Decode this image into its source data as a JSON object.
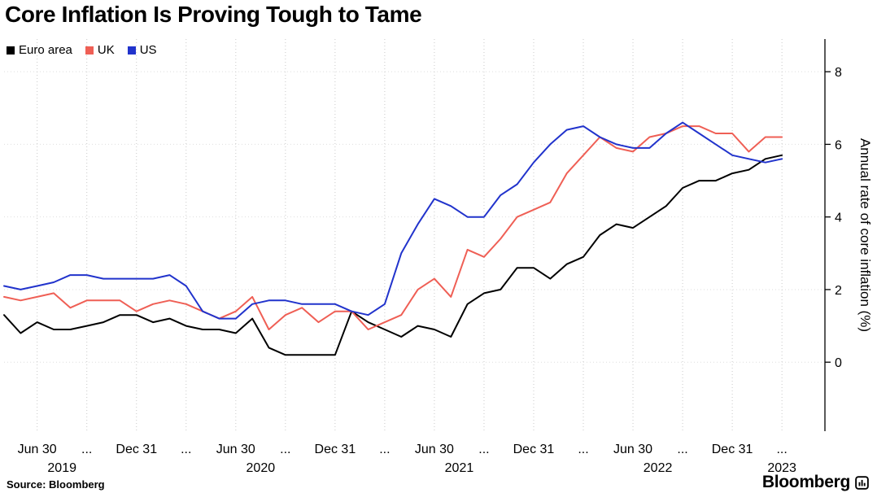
{
  "title": "Core Inflation Is Proving Tough to Tame",
  "source": "Source: Bloomberg",
  "brand": "Bloomberg",
  "chart_data": {
    "type": "line",
    "title": "Core Inflation Is Proving Tough to Tame",
    "xlabel": "",
    "ylabel": "Annual rate of core inflation (%)",
    "yticks": [
      0,
      2,
      4,
      6,
      8
    ],
    "ylim": [
      -1.9,
      8.9
    ],
    "x_domain": 49.5,
    "grid": "dotted",
    "legend_position": "top-left",
    "axis_side": "right",
    "x": [
      "2019-04",
      "2019-05",
      "2019-06",
      "2019-07",
      "2019-08",
      "2019-09",
      "2019-10",
      "2019-11",
      "2019-12",
      "2020-01",
      "2020-02",
      "2020-03",
      "2020-04",
      "2020-05",
      "2020-06",
      "2020-07",
      "2020-08",
      "2020-09",
      "2020-10",
      "2020-11",
      "2020-12",
      "2021-01",
      "2021-02",
      "2021-03",
      "2021-04",
      "2021-05",
      "2021-06",
      "2021-07",
      "2021-08",
      "2021-09",
      "2021-10",
      "2021-11",
      "2021-12",
      "2022-01",
      "2022-02",
      "2022-03",
      "2022-04",
      "2022-05",
      "2022-06",
      "2022-07",
      "2022-08",
      "2022-09",
      "2022-10",
      "2022-11",
      "2022-12",
      "2023-01",
      "2023-02",
      "2023-03"
    ],
    "xticks": [
      {
        "pos": 2,
        "label": "Jun 30"
      },
      {
        "pos": 5,
        "label": "..."
      },
      {
        "pos": 8,
        "label": "Dec 31"
      },
      {
        "pos": 11,
        "label": "..."
      },
      {
        "pos": 14,
        "label": "Jun 30"
      },
      {
        "pos": 17,
        "label": "..."
      },
      {
        "pos": 20,
        "label": "Dec 31"
      },
      {
        "pos": 23,
        "label": "..."
      },
      {
        "pos": 26,
        "label": "Jun 30"
      },
      {
        "pos": 29,
        "label": "..."
      },
      {
        "pos": 32,
        "label": "Dec 31"
      },
      {
        "pos": 35,
        "label": "..."
      },
      {
        "pos": 38,
        "label": "Jun 30"
      },
      {
        "pos": 41,
        "label": "..."
      },
      {
        "pos": 44,
        "label": "Dec 31"
      },
      {
        "pos": 47,
        "label": "..."
      }
    ],
    "year_ticks": [
      {
        "pos": 3.5,
        "label": "2019"
      },
      {
        "pos": 15.5,
        "label": "2020"
      },
      {
        "pos": 27.5,
        "label": "2021"
      },
      {
        "pos": 39.5,
        "label": "2022"
      },
      {
        "pos": 47,
        "label": "2023"
      }
    ],
    "series": [
      {
        "name": "Euro area",
        "color": "#000000",
        "values": [
          1.3,
          0.8,
          1.1,
          0.9,
          0.9,
          1.0,
          1.1,
          1.3,
          1.3,
          1.1,
          1.2,
          1.0,
          0.9,
          0.9,
          0.8,
          1.2,
          0.4,
          0.2,
          0.2,
          0.2,
          0.2,
          1.4,
          1.1,
          0.9,
          0.7,
          1.0,
          0.9,
          0.7,
          1.6,
          1.9,
          2.0,
          2.6,
          2.6,
          2.3,
          2.7,
          2.9,
          3.5,
          3.8,
          3.7,
          4.0,
          4.3,
          4.8,
          5.0,
          5.0,
          5.2,
          5.3,
          5.6,
          5.7
        ]
      },
      {
        "name": "UK",
        "color": "#ef5f55",
        "values": [
          1.8,
          1.7,
          1.8,
          1.9,
          1.5,
          1.7,
          1.7,
          1.7,
          1.4,
          1.6,
          1.7,
          1.6,
          1.4,
          1.2,
          1.4,
          1.8,
          0.9,
          1.3,
          1.5,
          1.1,
          1.4,
          1.4,
          0.9,
          1.1,
          1.3,
          2.0,
          2.3,
          1.8,
          3.1,
          2.9,
          3.4,
          4.0,
          4.2,
          4.4,
          5.2,
          5.7,
          6.2,
          5.9,
          5.8,
          6.2,
          6.3,
          6.5,
          6.5,
          6.3,
          6.3,
          5.8,
          6.2,
          6.2
        ]
      },
      {
        "name": "US",
        "color": "#2133cc",
        "values": [
          2.1,
          2.0,
          2.1,
          2.2,
          2.4,
          2.4,
          2.3,
          2.3,
          2.3,
          2.3,
          2.4,
          2.1,
          1.4,
          1.2,
          1.2,
          1.6,
          1.7,
          1.7,
          1.6,
          1.6,
          1.6,
          1.4,
          1.3,
          1.6,
          3.0,
          3.8,
          4.5,
          4.3,
          4.0,
          4.0,
          4.6,
          4.9,
          5.5,
          6.0,
          6.4,
          6.5,
          6.2,
          6.0,
          5.9,
          5.9,
          6.3,
          6.6,
          6.3,
          6.0,
          5.7,
          5.6,
          5.5,
          5.6
        ]
      }
    ]
  }
}
